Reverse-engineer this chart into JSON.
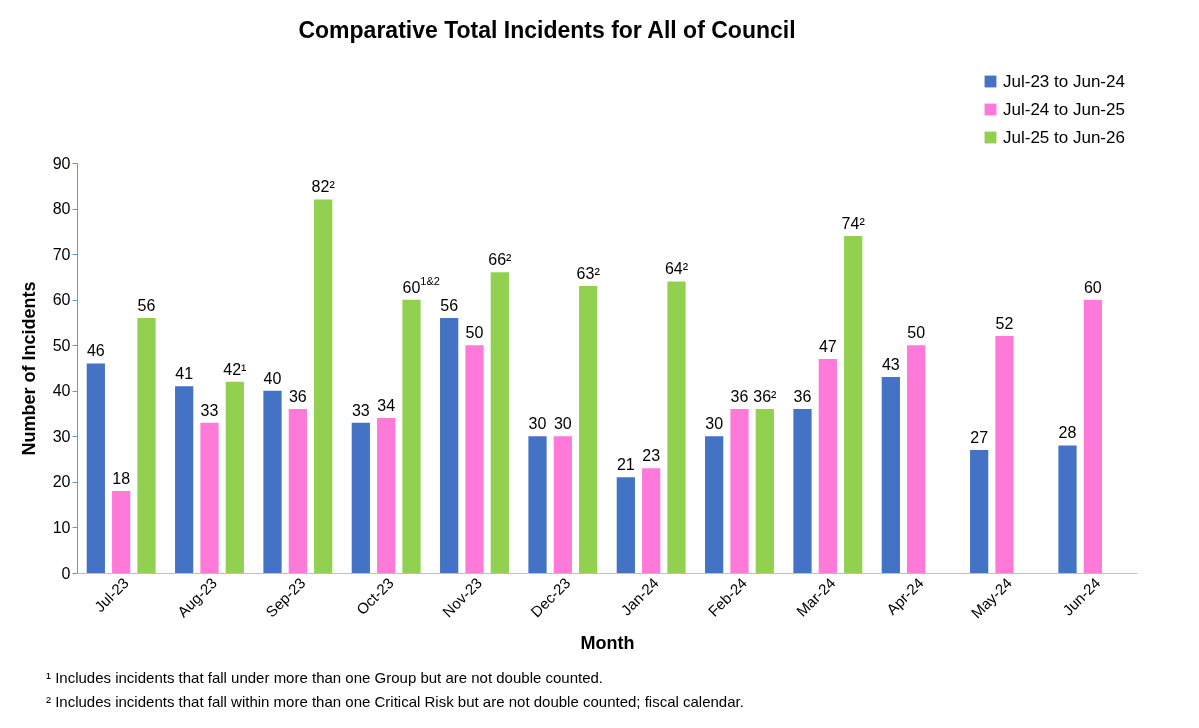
{
  "chart_data": {
    "type": "bar",
    "title": "Comparative Total Incidents for All of Council",
    "xlabel": "Month",
    "ylabel": "Number of Incidents",
    "categories": [
      "Jul-23",
      "Aug-23",
      "Sep-23",
      "Oct-23",
      "Nov-23",
      "Dec-23",
      "Jan-24",
      "Feb-24",
      "Mar-24",
      "Apr-24",
      "May-24",
      "Jun-24"
    ],
    "series": [
      {
        "name": "Jul-23 to Jun-24",
        "color": "#4472c4",
        "values": [
          46,
          41,
          40,
          33,
          56,
          30,
          21,
          30,
          36,
          43,
          27,
          28
        ],
        "value_labels": [
          "46",
          "41",
          "40",
          "33",
          "56",
          "30",
          "21",
          "30",
          "36",
          "43",
          "27",
          "28"
        ]
      },
      {
        "name": "Jul-24 to Jun-25",
        "color": "#ff79d9",
        "values": [
          18,
          33,
          36,
          34,
          50,
          30,
          23,
          36,
          47,
          50,
          52,
          60
        ],
        "value_labels": [
          "18",
          "33",
          "36",
          "34",
          "50",
          "30",
          "23",
          "36",
          "47",
          "50",
          "52",
          "60"
        ]
      },
      {
        "name": "Jul-25 to Jun-26",
        "color": "#92d050",
        "values": [
          56,
          42,
          82,
          60,
          66,
          63,
          64,
          36,
          74,
          null,
          null,
          null
        ],
        "value_labels": [
          "56",
          "42¹",
          "82²",
          "60$^{1&2}$",
          "66²",
          "63²",
          "64²",
          "36²",
          "74²",
          null,
          null,
          null
        ]
      }
    ],
    "ylim": [
      0,
      90
    ],
    "yticks": [
      0,
      10,
      20,
      30,
      40,
      50,
      60,
      70,
      80,
      90
    ],
    "legend": "top right",
    "annotations": [
      "¹ Includes incidents that fall under more than one Group but are not double counted.",
      "² Includes incidents that fall within more than one Critical Risk but are not double counted; fiscal calendar."
    ]
  }
}
